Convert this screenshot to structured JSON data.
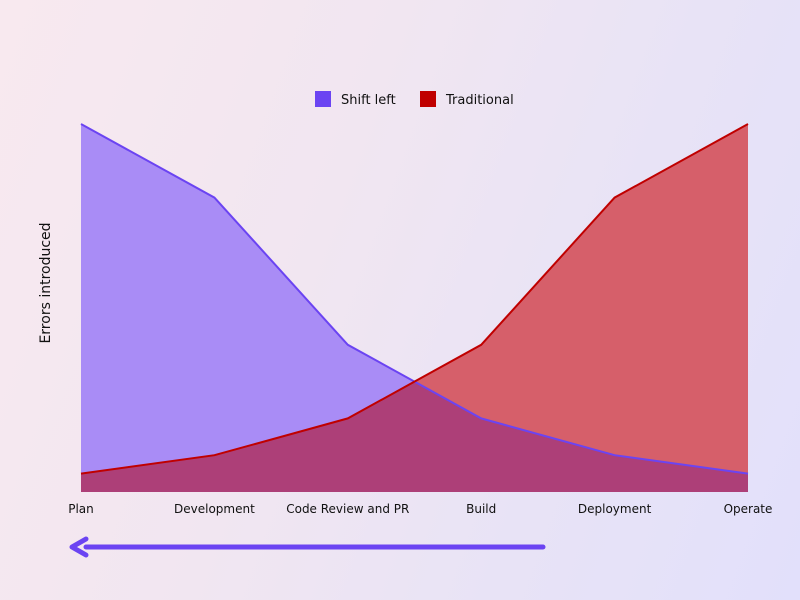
{
  "chart_data": {
    "type": "area",
    "categories": [
      "Plan",
      "Development",
      "Code Review and PR",
      "Build",
      "Deployment",
      "Operate"
    ],
    "series": [
      {
        "name": "Shift left",
        "values": [
          100,
          80,
          40,
          20,
          10,
          5
        ],
        "line_color": "#6b44f2",
        "fill_color": "#a98cf6"
      },
      {
        "name": "Traditional",
        "values": [
          5,
          10,
          20,
          40,
          80,
          100
        ],
        "line_color": "#c00000",
        "fill_color": "#d65f6a"
      }
    ],
    "title": "",
    "xlabel": "",
    "ylabel": "Errors introduced",
    "ylim": [
      0,
      100
    ],
    "grid": false,
    "legend": "top-center",
    "overlap_color": "#ad3f78",
    "arrow": {
      "direction": "left",
      "color": "#6b44f2"
    }
  }
}
